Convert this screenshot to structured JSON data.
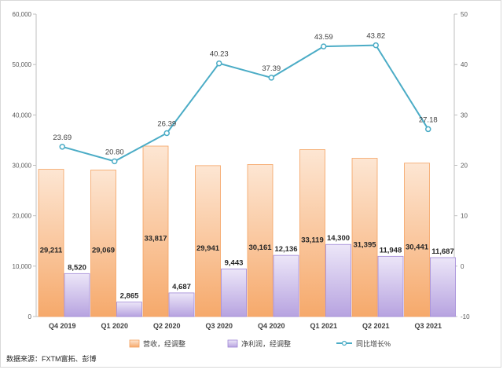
{
  "chart_data": {
    "type": "bar",
    "categories": [
      "Q4 2019",
      "Q1 2020",
      "Q2 2020",
      "Q3 2020",
      "Q4 2020",
      "Q1 2021",
      "Q2 2021",
      "Q3 2021"
    ],
    "series": [
      {
        "name": "营收，经调整",
        "type": "bar",
        "axis": "left",
        "values": [
          29211,
          29069,
          33817,
          29941,
          30161,
          33119,
          31395,
          30441
        ],
        "labels": [
          "29,211",
          "29,069",
          "33,817",
          "29,941",
          "30,161",
          "33,119",
          "31,395",
          "30,441"
        ],
        "color": "#f7b27a"
      },
      {
        "name": "净利润，经调整",
        "type": "bar",
        "axis": "left",
        "values": [
          8520,
          2865,
          4687,
          9443,
          12136,
          14300,
          11948,
          11687
        ],
        "labels": [
          "8,520",
          "2,865",
          "4,687",
          "9,443",
          "12,136",
          "14,300",
          "11,948",
          "11,687"
        ],
        "color": "#c3b3e6"
      },
      {
        "name": "同比增长%",
        "type": "line",
        "axis": "right",
        "values": [
          23.69,
          20.8,
          26.39,
          40.23,
          37.39,
          43.59,
          43.82,
          27.18
        ],
        "labels": [
          "23.69",
          "20.80",
          "26.39",
          "40.23",
          "37.39",
          "43.59",
          "43.82",
          "27.18"
        ],
        "color": "#4bacc6"
      }
    ],
    "y_left": {
      "lim": [
        0,
        60000
      ],
      "ticks": [
        0,
        10000,
        20000,
        30000,
        40000,
        50000,
        60000
      ],
      "tick_labels": [
        "0",
        "10,000",
        "20,000",
        "30,000",
        "40,000",
        "50,000",
        "60,000"
      ]
    },
    "y_right": {
      "lim": [
        -10,
        50
      ],
      "ticks": [
        -10,
        0,
        10,
        20,
        30,
        40,
        50
      ],
      "tick_labels": [
        "-10",
        "0",
        "10",
        "20",
        "30",
        "40",
        "50"
      ]
    },
    "grid": false,
    "legend_position": "bottom"
  },
  "source_note": "数据来源：FXTM富拓、彭博"
}
